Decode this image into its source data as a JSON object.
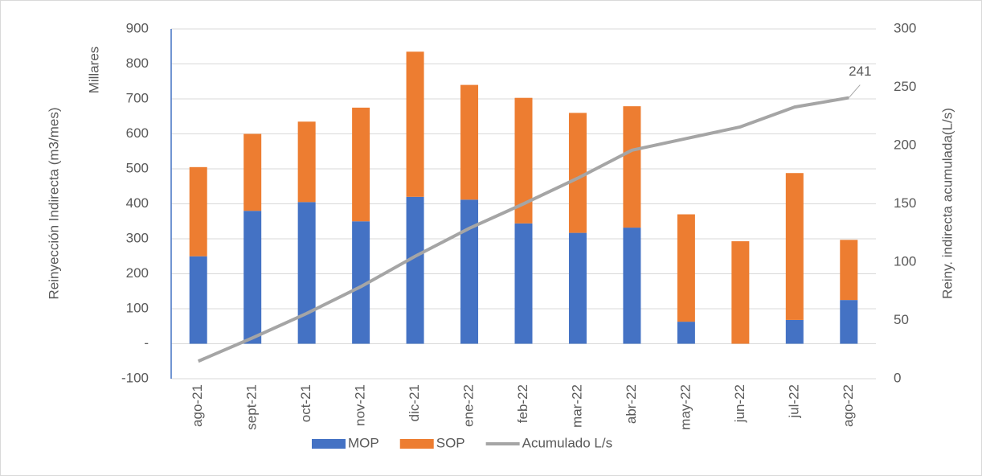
{
  "chart_data": {
    "type": "bar",
    "y_label": "Reinyección Indirecta (m3/mes)",
    "y_unit": "Millares",
    "y2_label": "Reiny. indirecta acumulada(L/s)",
    "categories": [
      "ago-21",
      "sept-21",
      "oct-21",
      "nov-21",
      "dic-21",
      "ene-22",
      "feb-22",
      "mar-22",
      "abr-22",
      "may-22",
      "jun-22",
      "jul-22",
      "ago-22"
    ],
    "series": [
      {
        "name": "MOP",
        "color": "#4472c4",
        "values": [
          250,
          380,
          405,
          350,
          420,
          412,
          344,
          317,
          332,
          63,
          0,
          68,
          125
        ]
      },
      {
        "name": "SOP",
        "color": "#ed7d31",
        "values": [
          255,
          220,
          230,
          325,
          415,
          328,
          359,
          343,
          347,
          307,
          293,
          420,
          172
        ]
      },
      {
        "name": "Acumulado L/s",
        "color": "#a5a5a5",
        "axis": "y2",
        "type": "line",
        "values": [
          15,
          35,
          56,
          79,
          105,
          129,
          150,
          172,
          196,
          206,
          216,
          233,
          241
        ]
      }
    ],
    "ylim": [
      -100,
      900
    ],
    "yticks": [
      -100,
      {
        "value": 0,
        "label": "-"
      },
      100,
      200,
      300,
      400,
      500,
      600,
      700,
      800,
      900
    ],
    "y2lim": [
      0,
      300
    ],
    "y2ticks": [
      0,
      50,
      100,
      150,
      200,
      250,
      300
    ],
    "grid": true,
    "legend": "bottom"
  }
}
